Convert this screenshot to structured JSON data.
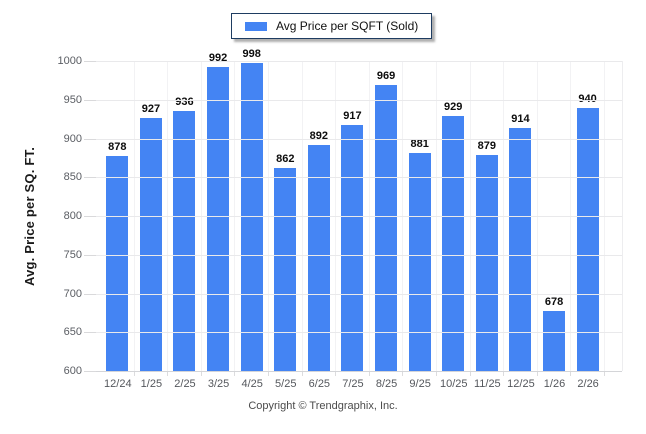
{
  "legend": {
    "label": "Avg Price per SQFT (Sold)"
  },
  "y_axis": {
    "title": "Avg. Price per SQ. FT."
  },
  "footer": {
    "copyright": "Copyright © Trendgraphix, Inc."
  },
  "colors": {
    "bar": "#4484f3",
    "legend_border": "#1e3c61",
    "gridline": "#e9e9eb",
    "tick_text": "#5a5d63"
  },
  "chart_data": {
    "type": "bar",
    "title": "Avg Price per SQFT (Sold)",
    "categories": [
      "12/24",
      "1/25",
      "2/25",
      "3/25",
      "4/25",
      "5/25",
      "6/25",
      "7/25",
      "8/25",
      "9/25",
      "10/25",
      "11/25",
      "12/25",
      "1/26",
      "2/26"
    ],
    "values": [
      878,
      927,
      936,
      992,
      998,
      862,
      892,
      917,
      969,
      881,
      929,
      879,
      914,
      678,
      940
    ],
    "xlabel": "",
    "ylabel": "Avg. Price per SQ. FT.",
    "ylim": [
      600,
      1000
    ],
    "yticks": [
      600,
      650,
      700,
      750,
      800,
      850,
      900,
      950,
      1000
    ],
    "grid": true,
    "legend_position": "top-center",
    "value_labels": true,
    "bar_color": "#4484f3"
  }
}
